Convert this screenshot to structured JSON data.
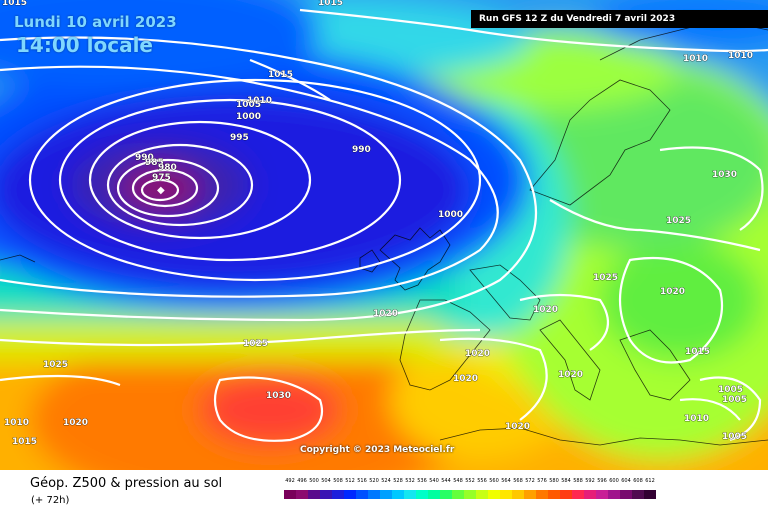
{
  "header": {
    "date": "Lundi 10 avril 2023",
    "time": "14:00 locale",
    "run": "Run GFS 12 Z du Vendredi 7 avril 2023"
  },
  "copyright": "Copyright © 2023 Meteociel.fr",
  "footer": {
    "title": "Géop. Z500 & pression au sol",
    "subtitle": "(+ 72h)"
  },
  "scale": {
    "ticks": [
      "492",
      "496",
      "500",
      "504",
      "508",
      "512",
      "516",
      "520",
      "524",
      "528",
      "532",
      "536",
      "540",
      "544",
      "548",
      "552",
      "556",
      "560",
      "564",
      "568",
      "572",
      "576",
      "580",
      "584",
      "588",
      "592",
      "596",
      "600",
      "604",
      "608",
      "612"
    ],
    "colors": [
      "#7a005a",
      "#8c0a6e",
      "#5a0a8c",
      "#3a14b4",
      "#1e1edc",
      "#0028ff",
      "#0050ff",
      "#0078ff",
      "#00a0ff",
      "#00c8ff",
      "#14e6f0",
      "#00ffc8",
      "#00ffa0",
      "#28ff64",
      "#64ff3c",
      "#96ff28",
      "#c8ff14",
      "#f0ff00",
      "#ffe600",
      "#ffc800",
      "#ffa000",
      "#ff7800",
      "#ff5a00",
      "#ff3c14",
      "#ff2850",
      "#e61e78",
      "#c81e96",
      "#a0148c",
      "#780a6e",
      "#500a50",
      "#320032"
    ]
  },
  "isobar_labels": [
    {
      "text": "1015",
      "name": "isobar-label-1015-a"
    },
    {
      "text": "1015",
      "name": "isobar-label-1015-b"
    },
    {
      "text": "1010",
      "name": "isobar-label-1010-a"
    },
    {
      "text": "1005",
      "name": "isobar-label-1005-a"
    },
    {
      "text": "1000",
      "name": "isobar-label-1000-a"
    },
    {
      "text": "995",
      "name": "isobar-label-995"
    },
    {
      "text": "990",
      "name": "isobar-label-990-a"
    },
    {
      "text": "985",
      "name": "isobar-label-985"
    },
    {
      "text": "980",
      "name": "isobar-label-980"
    },
    {
      "text": "975",
      "name": "isobar-label-975"
    },
    {
      "text": "990",
      "name": "isobar-label-990-b"
    },
    {
      "text": "1000",
      "name": "isobar-label-1000-b"
    },
    {
      "text": "1015",
      "name": "isobar-label-1015-c"
    },
    {
      "text": "1010",
      "name": "isobar-label-1010-b"
    },
    {
      "text": "1030",
      "name": "isobar-label-1030-a"
    },
    {
      "text": "1025",
      "name": "isobar-label-1025-a"
    },
    {
      "text": "1025",
      "name": "isobar-label-1025-b"
    },
    {
      "text": "1020",
      "name": "isobar-label-1020-a"
    },
    {
      "text": "1020",
      "name": "isobar-label-1020-b"
    },
    {
      "text": "1025",
      "name": "isobar-label-1025-c"
    },
    {
      "text": "1020",
      "name": "isobar-label-1020-c"
    },
    {
      "text": "1020",
      "name": "isobar-label-1020-d"
    },
    {
      "text": "1015",
      "name": "isobar-label-1015-d"
    },
    {
      "text": "1025",
      "name": "isobar-label-1025-d"
    },
    {
      "text": "1020",
      "name": "isobar-label-1020-e"
    },
    {
      "text": "1030",
      "name": "isobar-label-1030-b"
    },
    {
      "text": "1020",
      "name": "isobar-label-1020-f"
    },
    {
      "text": "1010",
      "name": "isobar-label-1010-c"
    },
    {
      "text": "1005",
      "name": "isobar-label-1005-b"
    },
    {
      "text": "1005",
      "name": "isobar-label-1005-c"
    },
    {
      "text": "1010",
      "name": "isobar-label-1010-d"
    },
    {
      "text": "1005",
      "name": "isobar-label-1005-d"
    },
    {
      "text": "1010",
      "name": "isobar-label-1010-e"
    },
    {
      "text": "1015",
      "name": "isobar-label-1015-e"
    },
    {
      "text": "1020",
      "name": "isobar-label-1020-g"
    },
    {
      "text": "1020",
      "name": "isobar-label-1020-h"
    }
  ]
}
